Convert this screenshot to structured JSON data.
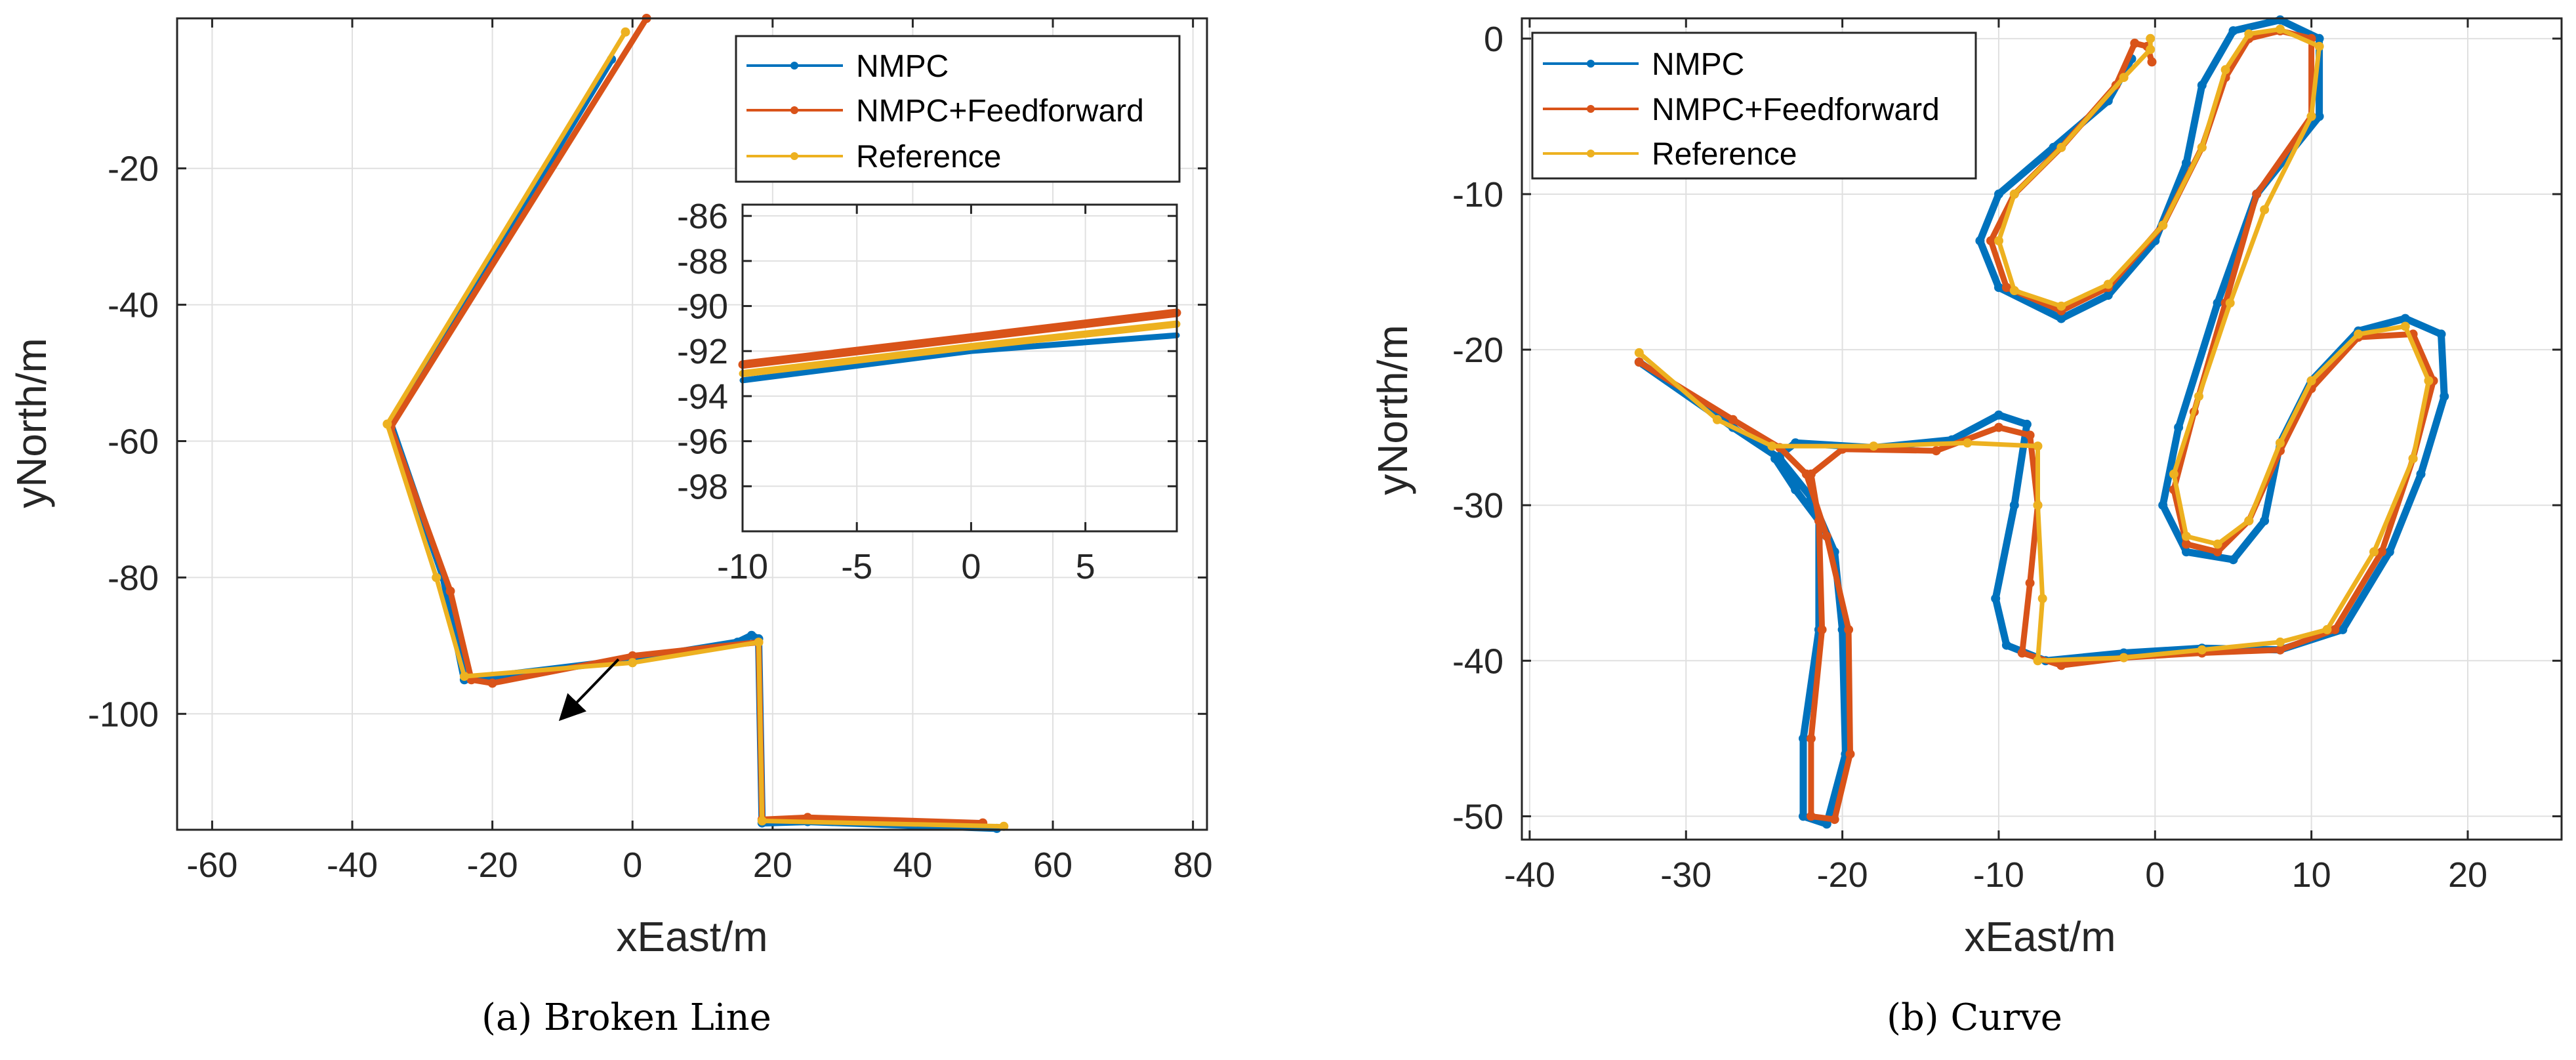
{
  "colors": {
    "nmpc": "#0072BD",
    "ff": "#D95319",
    "ref": "#EDB120",
    "grid": "#e0e0e0",
    "axis": "#262626"
  },
  "chart_data": [
    {
      "type": "line",
      "caption": "(a)  Broken Line",
      "xlabel": "xEast/m",
      "ylabel": "yNorth/m",
      "xlim": [
        -65,
        82
      ],
      "ylim": [
        -117,
        2
      ],
      "xticks": [
        -60,
        -40,
        -20,
        0,
        20,
        40,
        60,
        80
      ],
      "yticks": [
        -20,
        -40,
        -60,
        -80,
        -100
      ],
      "grid": true,
      "legend_position": "top-right",
      "series": [
        {
          "name": "NMPC",
          "color_key": "nmpc",
          "points": [
            [
              -3,
              -4
            ],
            [
              -34.5,
              -57.5
            ],
            [
              -27,
              -80
            ],
            [
              -24,
              -95
            ],
            [
              -20,
              -94.5
            ],
            [
              0,
              -92
            ],
            [
              15,
              -89.5
            ],
            [
              17,
              -88.5
            ],
            [
              18,
              -89
            ],
            [
              18.5,
              -116
            ],
            [
              25,
              -115.8
            ],
            [
              52,
              -116.8
            ]
          ]
        },
        {
          "name": "NMPC+Feedforward",
          "color_key": "ff",
          "points": [
            [
              2,
              2
            ],
            [
              -34.5,
              -58
            ],
            [
              -26,
              -82
            ],
            [
              -23,
              -95
            ],
            [
              -20,
              -95.5
            ],
            [
              0,
              -91.5
            ],
            [
              18,
              -89.5
            ],
            [
              18.5,
              -115.5
            ],
            [
              25,
              -115.2
            ],
            [
              50,
              -116
            ]
          ]
        },
        {
          "name": "Reference",
          "color_key": "ref",
          "points": [
            [
              -1,
              0
            ],
            [
              -35,
              -57.5
            ],
            [
              -28,
              -80
            ],
            [
              -24,
              -94.5
            ],
            [
              0,
              -92.5
            ],
            [
              18,
              -89.5
            ],
            [
              18.5,
              -115.7
            ],
            [
              53,
              -116.5
            ]
          ]
        }
      ],
      "inset": {
        "xlim": [
          -10,
          9
        ],
        "ylim": [
          -100,
          -85.5
        ],
        "xticks": [
          -10,
          -5,
          0,
          5
        ],
        "yticks": [
          -86,
          -88,
          -90,
          -92,
          -94,
          -96,
          -98
        ],
        "series": [
          {
            "color_key": "nmpc",
            "points": [
              [
                -10,
                -93.3
              ],
              [
                0,
                -92.0
              ],
              [
                9,
                -91.3
              ]
            ]
          },
          {
            "color_key": "ff",
            "points": [
              [
                -10,
                -92.6
              ],
              [
                0,
                -91.4
              ],
              [
                9,
                -90.3
              ]
            ]
          },
          {
            "color_key": "ref",
            "points": [
              [
                -10,
                -93.0
              ],
              [
                0,
                -91.8
              ],
              [
                9,
                -90.8
              ]
            ]
          }
        ],
        "arrow": {
          "from": [
            -2,
            -92
          ],
          "to": [
            -10,
            -100.5
          ]
        }
      }
    },
    {
      "type": "line",
      "caption": "(b)  Curve",
      "xlabel": "xEast/m",
      "ylabel": "yNorth/m",
      "xlim": [
        -40.5,
        26
      ],
      "ylim": [
        -51.5,
        1.3
      ],
      "xticks": [
        -40,
        -30,
        -20,
        -10,
        0,
        10,
        20
      ],
      "yticks": [
        0,
        -10,
        -20,
        -30,
        -40,
        -50
      ],
      "grid": true,
      "legend_position": "top-left",
      "series": [
        {
          "name": "NMPC",
          "color_key": "nmpc",
          "points": [
            [
              -33,
              -20.8
            ],
            [
              -27,
              -25
            ],
            [
              -24,
              -27
            ],
            [
              -22,
              -29.5
            ],
            [
              -20.5,
              -33
            ],
            [
              -20,
              -38
            ],
            [
              -19.8,
              -46
            ],
            [
              -21,
              -50.5
            ],
            [
              -22.5,
              -50
            ],
            [
              -22.5,
              -45
            ],
            [
              -21.5,
              -38
            ],
            [
              -21.5,
              -31
            ],
            [
              -23,
              -29
            ],
            [
              -24.3,
              -27
            ],
            [
              -23,
              -26
            ],
            [
              -18,
              -26.3
            ],
            [
              -13,
              -25.8
            ],
            [
              -10,
              -24.2
            ],
            [
              -8.2,
              -24.8
            ],
            [
              -9,
              -30
            ],
            [
              -10.2,
              -36
            ],
            [
              -9.5,
              -39
            ],
            [
              -7,
              -40
            ],
            [
              -2,
              -39.5
            ],
            [
              3,
              -39.2
            ],
            [
              8,
              -39.3
            ],
            [
              12,
              -38
            ],
            [
              15,
              -33
            ],
            [
              17,
              -28
            ],
            [
              18.5,
              -23
            ],
            [
              18.3,
              -19
            ],
            [
              16,
              -18
            ],
            [
              13,
              -18.8
            ],
            [
              10,
              -22
            ],
            [
              8,
              -26
            ],
            [
              7,
              -31
            ],
            [
              5,
              -33.5
            ],
            [
              2,
              -33
            ],
            [
              0.5,
              -30
            ],
            [
              1.5,
              -25
            ],
            [
              4,
              -17
            ],
            [
              6.5,
              -10
            ],
            [
              10.5,
              -5
            ],
            [
              10.5,
              0
            ],
            [
              8,
              1.2
            ],
            [
              5,
              0.5
            ],
            [
              3,
              -3
            ],
            [
              2,
              -8
            ],
            [
              0,
              -13
            ],
            [
              -3,
              -16.5
            ],
            [
              -6,
              -18
            ],
            [
              -10,
              -16
            ],
            [
              -11.2,
              -13
            ],
            [
              -10,
              -10
            ],
            [
              -6.5,
              -7
            ],
            [
              -3,
              -4
            ],
            [
              -1.5,
              -1.3
            ]
          ]
        },
        {
          "name": "NMPC+Feedforward",
          "color_key": "ff",
          "points": [
            [
              -33,
              -20.8
            ],
            [
              -27,
              -24.5
            ],
            [
              -24,
              -26.3
            ],
            [
              -22.3,
              -28
            ],
            [
              -21,
              -32
            ],
            [
              -19.6,
              -38
            ],
            [
              -19.5,
              -46
            ],
            [
              -20.5,
              -50.2
            ],
            [
              -22,
              -50
            ],
            [
              -22,
              -45
            ],
            [
              -21.3,
              -38
            ],
            [
              -21.5,
              -31
            ],
            [
              -22,
              -28
            ],
            [
              -20,
              -26.4
            ],
            [
              -14,
              -26.5
            ],
            [
              -10,
              -25
            ],
            [
              -8,
              -25.5
            ],
            [
              -7.5,
              -30
            ],
            [
              -8,
              -35
            ],
            [
              -8.5,
              -39.5
            ],
            [
              -6,
              -40.3
            ],
            [
              -2,
              -39.8
            ],
            [
              3,
              -39.5
            ],
            [
              8,
              -39.3
            ],
            [
              11.5,
              -38
            ],
            [
              14.5,
              -33
            ],
            [
              16.5,
              -27
            ],
            [
              17.8,
              -22
            ],
            [
              16.5,
              -19
            ],
            [
              13,
              -19.2
            ],
            [
              10,
              -22.5
            ],
            [
              8,
              -26.5
            ],
            [
              6,
              -31
            ],
            [
              4,
              -33
            ],
            [
              2,
              -32.5
            ],
            [
              1.2,
              -29
            ],
            [
              2.5,
              -24
            ],
            [
              4.5,
              -17
            ],
            [
              6.5,
              -10
            ],
            [
              10,
              -5
            ],
            [
              10,
              0
            ],
            [
              8,
              0.5
            ],
            [
              6,
              0
            ],
            [
              4.5,
              -2.5
            ],
            [
              3,
              -7
            ],
            [
              0.5,
              -12
            ],
            [
              -3,
              -16
            ],
            [
              -6,
              -17.5
            ],
            [
              -9.5,
              -16
            ],
            [
              -10.5,
              -13
            ],
            [
              -9,
              -10
            ],
            [
              -6,
              -7
            ],
            [
              -2.5,
              -3
            ],
            [
              -1.3,
              -0.3
            ],
            [
              -0.5,
              -0.5
            ],
            [
              -0.2,
              -1.5
            ]
          ]
        },
        {
          "name": "Reference",
          "color_key": "ref",
          "points": [
            [
              -33,
              -20.2
            ],
            [
              -28,
              -24.5
            ],
            [
              -24.5,
              -26.2
            ],
            [
              -18,
              -26.2
            ],
            [
              -12,
              -26
            ],
            [
              -7.5,
              -26.2
            ],
            [
              -7.5,
              -30
            ],
            [
              -7.2,
              -36
            ],
            [
              -7.5,
              -40
            ],
            [
              -2,
              -39.8
            ],
            [
              3,
              -39.3
            ],
            [
              8,
              -38.8
            ],
            [
              11,
              -38
            ],
            [
              14,
              -33
            ],
            [
              16.5,
              -27
            ],
            [
              17.5,
              -22
            ],
            [
              16,
              -18.5
            ],
            [
              13,
              -19
            ],
            [
              10,
              -22
            ],
            [
              8,
              -26
            ],
            [
              6,
              -31
            ],
            [
              4,
              -32.5
            ],
            [
              2,
              -32
            ],
            [
              1.2,
              -28
            ],
            [
              2.8,
              -23
            ],
            [
              4.8,
              -17
            ],
            [
              7,
              -11
            ],
            [
              10,
              -5
            ],
            [
              10.5,
              -0.5
            ],
            [
              8,
              0.6
            ],
            [
              6,
              0.3
            ],
            [
              4.5,
              -2
            ],
            [
              3,
              -7
            ],
            [
              0.5,
              -12
            ],
            [
              -3,
              -15.8
            ],
            [
              -6,
              -17.2
            ],
            [
              -9,
              -16.2
            ],
            [
              -10,
              -13
            ],
            [
              -9,
              -10
            ],
            [
              -6,
              -7
            ],
            [
              -2,
              -2.5
            ],
            [
              -0.3,
              -0.7
            ],
            [
              -0.3,
              0
            ]
          ]
        }
      ]
    }
  ]
}
